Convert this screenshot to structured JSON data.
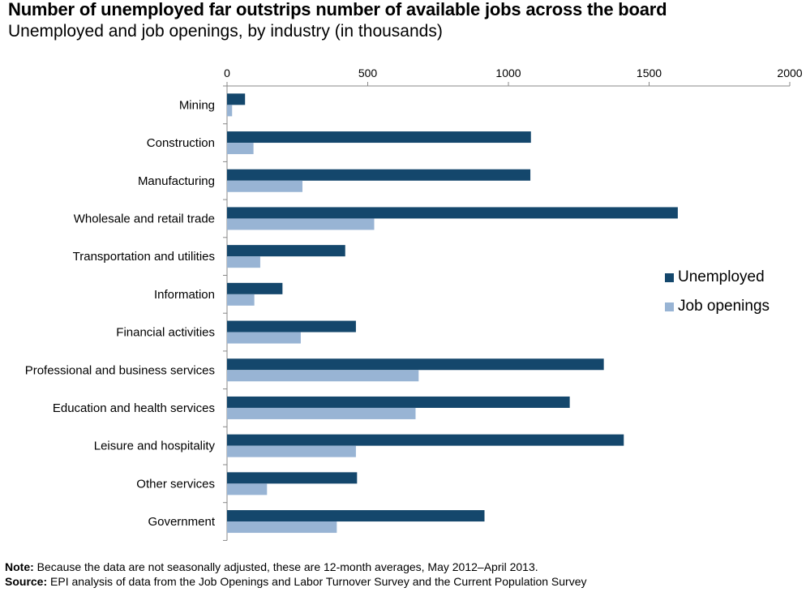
{
  "header": {
    "title": "Number of unemployed far outstrips number of available jobs across the board",
    "subtitle": "Unemployed and job openings, by industry (in thousands)"
  },
  "colors": {
    "unemployed": "#14476c",
    "openings": "#98b4d4",
    "axis": "#888888"
  },
  "chart_data": {
    "type": "bar",
    "orientation": "horizontal",
    "title": "Number of unemployed far outstrips number of available jobs across the board",
    "subtitle": "Unemployed and job openings, by industry (in thousands)",
    "xlabel": "",
    "ylabel": "",
    "xlim": [
      0,
      2000
    ],
    "xticks": [
      0,
      500,
      1000,
      1500,
      2000
    ],
    "categories": [
      "Mining",
      "Construction",
      "Manufacturing",
      "Wholesale and retail trade",
      "Transportation and utilities",
      "Information",
      "Financial activities",
      "Professional and business services",
      "Education and health services",
      "Leisure and hospitality",
      "Other services",
      "Government"
    ],
    "series": [
      {
        "name": "Unemployed",
        "values": [
          64,
          1080,
          1078,
          1602,
          420,
          197,
          458,
          1339,
          1218,
          1410,
          462,
          915
        ]
      },
      {
        "name": "Job openings",
        "values": [
          18,
          94,
          268,
          523,
          118,
          97,
          262,
          681,
          670,
          458,
          142,
          390
        ]
      }
    ],
    "legend_position": "right"
  },
  "legend": {
    "unemployed_label": "Unemployed",
    "openings_label": "Job openings"
  },
  "footer": {
    "note_label": "Note:",
    "note_text": " Because the data are not seasonally adjusted, these are 12-month averages, May 2012–April 2013.",
    "source_label": "Source:",
    "source_text": " EPI analysis of data from the Job Openings and Labor Turnover Survey and the Current Population Survey"
  }
}
